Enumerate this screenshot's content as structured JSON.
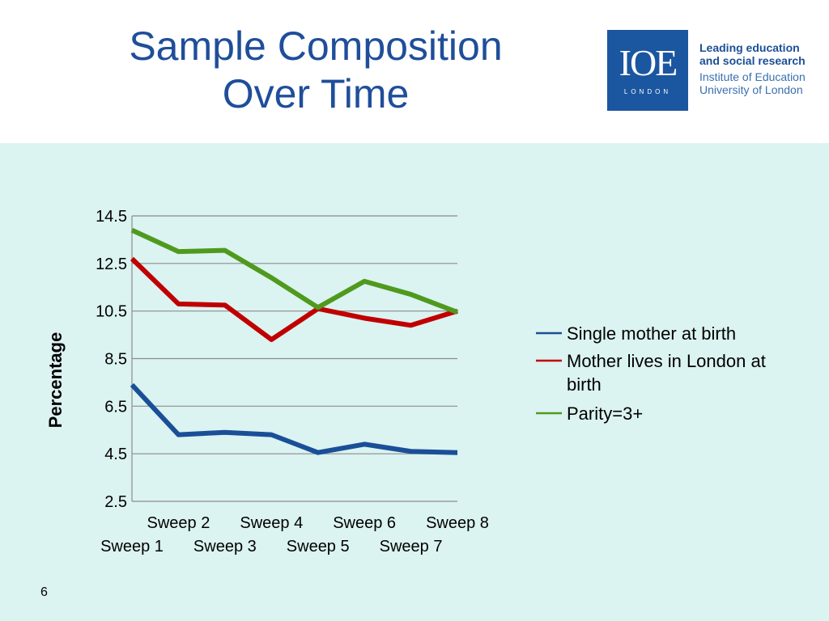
{
  "slide": {
    "title_line1": "Sample Composition",
    "title_line2": "Over Time",
    "page_number": "6"
  },
  "logo": {
    "mark": "IOE",
    "sub": "LONDON",
    "tag_line1": "Leading education",
    "tag_line2": "and social research",
    "tag_line3": "Institute of Education",
    "tag_line4": "University of London",
    "color": "#1b56a0"
  },
  "chart_data": {
    "type": "line",
    "title": "",
    "xlabel": "",
    "ylabel": "Percentage",
    "categories": [
      "Sweep 1",
      "Sweep 2",
      "Sweep 3",
      "Sweep 4",
      "Sweep 5",
      "Sweep 6",
      "Sweep 7",
      "Sweep 8"
    ],
    "ylim": [
      2.5,
      14.5
    ],
    "yticks": [
      "2.5",
      "4.5",
      "6.5",
      "8.5",
      "10.5",
      "12.5",
      "14.5"
    ],
    "grid": true,
    "legend_position": "right",
    "series": [
      {
        "name": "Single mother at birth",
        "color": "#1a4f98",
        "values": [
          7.4,
          5.3,
          5.4,
          5.3,
          4.55,
          4.9,
          4.6,
          4.55
        ]
      },
      {
        "name": "Mother lives in London at birth",
        "color": "#c00000",
        "values": [
          12.7,
          10.8,
          10.75,
          9.3,
          10.6,
          10.2,
          9.9,
          10.5
        ]
      },
      {
        "name": "Parity=3+",
        "color": "#4f9a1e",
        "values": [
          13.9,
          13.0,
          13.05,
          11.9,
          10.65,
          11.75,
          11.2,
          10.45
        ]
      }
    ]
  }
}
